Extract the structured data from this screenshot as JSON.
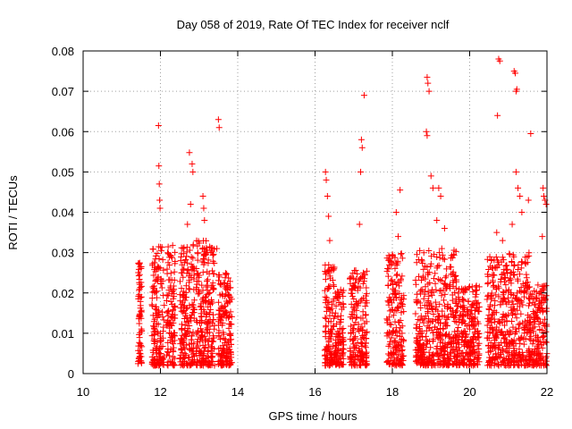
{
  "chart_data": {
    "type": "scatter",
    "title": "Day 058 of 2019, Rate Of TEC Index for receiver nclf",
    "xlabel": "GPS time / hours",
    "ylabel": "ROTI / TECUs",
    "xlim": [
      10,
      22
    ],
    "ylim": [
      0,
      0.08
    ],
    "xticks": [
      "10",
      "12",
      "14",
      "16",
      "18",
      "20",
      "22"
    ],
    "yticks": [
      "0",
      "0.01",
      "0.02",
      "0.03",
      "0.04",
      "0.05",
      "0.06",
      "0.07",
      "0.08"
    ],
    "grid": true,
    "marker": "+",
    "color": "#ff0000",
    "clusters": [
      {
        "x": [
          11.42,
          11.52
        ],
        "y_max": 0.028,
        "n": 70
      },
      {
        "x": [
          11.78,
          12.1
        ],
        "y_max": 0.032,
        "n": 150
      },
      {
        "x": [
          12.15,
          12.38
        ],
        "y_max": 0.032,
        "n": 110
      },
      {
        "x": [
          12.5,
          12.88
        ],
        "y_max": 0.032,
        "n": 180
      },
      {
        "x": [
          12.92,
          13.4
        ],
        "y_max": 0.033,
        "n": 230
      },
      {
        "x": [
          13.5,
          13.85
        ],
        "y_max": 0.025,
        "n": 170
      },
      {
        "x": [
          16.25,
          16.55
        ],
        "y_max": 0.027,
        "n": 140
      },
      {
        "x": [
          16.55,
          16.75
        ],
        "y_max": 0.021,
        "n": 80
      },
      {
        "x": [
          16.9,
          17.35
        ],
        "y_max": 0.026,
        "n": 180
      },
      {
        "x": [
          17.85,
          18.3
        ],
        "y_max": 0.03,
        "n": 180
      },
      {
        "x": [
          18.6,
          19.1
        ],
        "y_max": 0.031,
        "n": 200
      },
      {
        "x": [
          19.1,
          19.7
        ],
        "y_max": 0.031,
        "n": 240
      },
      {
        "x": [
          19.7,
          20.25
        ],
        "y_max": 0.022,
        "n": 220
      },
      {
        "x": [
          20.45,
          20.85
        ],
        "y_max": 0.029,
        "n": 160
      },
      {
        "x": [
          20.85,
          21.55
        ],
        "y_max": 0.03,
        "n": 270
      },
      {
        "x": [
          21.55,
          22.0
        ],
        "y_max": 0.022,
        "n": 170
      }
    ],
    "outliers": [
      {
        "x": 11.95,
        "y": 0.0615
      },
      {
        "x": 11.96,
        "y": 0.0515
      },
      {
        "x": 11.97,
        "y": 0.047
      },
      {
        "x": 11.98,
        "y": 0.043
      },
      {
        "x": 11.99,
        "y": 0.041
      },
      {
        "x": 12.75,
        "y": 0.0548
      },
      {
        "x": 12.82,
        "y": 0.052
      },
      {
        "x": 12.84,
        "y": 0.05
      },
      {
        "x": 12.78,
        "y": 0.042
      },
      {
        "x": 12.7,
        "y": 0.037
      },
      {
        "x": 13.1,
        "y": 0.044
      },
      {
        "x": 13.12,
        "y": 0.041
      },
      {
        "x": 13.14,
        "y": 0.038
      },
      {
        "x": 13.5,
        "y": 0.063
      },
      {
        "x": 13.52,
        "y": 0.061
      },
      {
        "x": 13.46,
        "y": 0.031
      },
      {
        "x": 16.27,
        "y": 0.05
      },
      {
        "x": 16.29,
        "y": 0.048
      },
      {
        "x": 16.32,
        "y": 0.044
      },
      {
        "x": 16.35,
        "y": 0.039
      },
      {
        "x": 16.38,
        "y": 0.033
      },
      {
        "x": 17.2,
        "y": 0.058
      },
      {
        "x": 17.22,
        "y": 0.056
      },
      {
        "x": 17.27,
        "y": 0.069
      },
      {
        "x": 17.18,
        "y": 0.05
      },
      {
        "x": 17.15,
        "y": 0.037
      },
      {
        "x": 18.1,
        "y": 0.04
      },
      {
        "x": 18.15,
        "y": 0.034
      },
      {
        "x": 18.2,
        "y": 0.0455
      },
      {
        "x": 18.9,
        "y": 0.0735
      },
      {
        "x": 18.92,
        "y": 0.072
      },
      {
        "x": 18.95,
        "y": 0.07
      },
      {
        "x": 18.88,
        "y": 0.06
      },
      {
        "x": 18.9,
        "y": 0.059
      },
      {
        "x": 19.0,
        "y": 0.049
      },
      {
        "x": 19.05,
        "y": 0.046
      },
      {
        "x": 19.15,
        "y": 0.038
      },
      {
        "x": 19.2,
        "y": 0.046
      },
      {
        "x": 19.25,
        "y": 0.044
      },
      {
        "x": 19.35,
        "y": 0.036
      },
      {
        "x": 20.15,
        "y": 0.018
      },
      {
        "x": 20.75,
        "y": 0.078
      },
      {
        "x": 20.78,
        "y": 0.0775
      },
      {
        "x": 20.72,
        "y": 0.064
      },
      {
        "x": 21.15,
        "y": 0.075
      },
      {
        "x": 21.18,
        "y": 0.0745
      },
      {
        "x": 21.2,
        "y": 0.07
      },
      {
        "x": 21.22,
        "y": 0.0705
      },
      {
        "x": 21.2,
        "y": 0.05
      },
      {
        "x": 21.25,
        "y": 0.046
      },
      {
        "x": 21.3,
        "y": 0.044
      },
      {
        "x": 21.35,
        "y": 0.04
      },
      {
        "x": 21.1,
        "y": 0.037
      },
      {
        "x": 20.7,
        "y": 0.035
      },
      {
        "x": 20.85,
        "y": 0.033
      },
      {
        "x": 21.58,
        "y": 0.0595
      },
      {
        "x": 21.52,
        "y": 0.043
      },
      {
        "x": 21.9,
        "y": 0.046
      },
      {
        "x": 21.92,
        "y": 0.044
      },
      {
        "x": 21.95,
        "y": 0.043
      },
      {
        "x": 21.98,
        "y": 0.042
      },
      {
        "x": 21.88,
        "y": 0.034
      }
    ]
  }
}
